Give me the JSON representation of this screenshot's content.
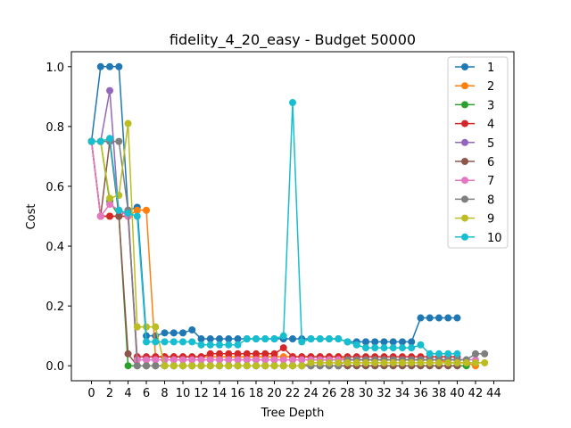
{
  "chart_data": {
    "type": "line",
    "title": "fidelity_4_20_easy - Budget  50000",
    "xlabel": "Tree Depth",
    "ylabel": "Cost",
    "xlim": [
      -2.2,
      46.2
    ],
    "ylim": [
      -0.05,
      1.05
    ],
    "xticks": [
      0,
      2,
      4,
      6,
      8,
      10,
      12,
      14,
      16,
      18,
      20,
      22,
      24,
      26,
      28,
      30,
      32,
      34,
      36,
      38,
      40,
      42,
      44
    ],
    "yticks": [
      0.0,
      0.2,
      0.4,
      0.6,
      0.8,
      1.0
    ],
    "ytick_labels": [
      "0.0",
      "0.2",
      "0.4",
      "0.6",
      "0.8",
      "1.0"
    ],
    "grid": false,
    "legend_position": "top-right",
    "series": [
      {
        "name": "1",
        "color": "#1f77b4",
        "x": [
          0,
          1,
          2,
          3,
          4,
          5,
          6,
          7,
          8,
          9,
          10,
          11,
          12,
          13,
          14,
          15,
          16,
          17,
          18,
          19,
          20,
          21,
          22,
          23,
          24,
          25,
          26,
          27,
          28,
          29,
          30,
          31,
          32,
          33,
          34,
          35,
          36,
          37,
          38,
          39,
          40
        ],
        "y": [
          0.75,
          1.0,
          1.0,
          1.0,
          0.52,
          0.53,
          0.1,
          0.1,
          0.11,
          0.11,
          0.11,
          0.12,
          0.09,
          0.09,
          0.09,
          0.09,
          0.09,
          0.09,
          0.09,
          0.09,
          0.09,
          0.09,
          0.09,
          0.09,
          0.09,
          0.09,
          0.09,
          0.09,
          0.08,
          0.08,
          0.08,
          0.08,
          0.08,
          0.08,
          0.08,
          0.08,
          0.16,
          0.16,
          0.16,
          0.16,
          0.16
        ]
      },
      {
        "name": "2",
        "color": "#ff7f0e",
        "x": [
          0,
          1,
          2,
          3,
          4,
          5,
          6,
          7,
          8,
          9,
          10,
          11,
          12,
          13,
          14,
          15,
          16,
          17,
          18,
          19,
          20,
          21,
          22,
          23,
          24,
          25,
          26,
          27,
          28,
          29,
          30,
          31,
          32,
          33,
          34,
          35,
          36,
          37,
          38,
          39,
          40,
          41,
          42
        ],
        "y": [
          0.75,
          0.5,
          0.5,
          0.5,
          0.5,
          0.52,
          0.52,
          0.03,
          0.03,
          0.03,
          0.03,
          0.03,
          0.03,
          0.03,
          0.03,
          0.03,
          0.03,
          0.03,
          0.03,
          0.03,
          0.03,
          0.03,
          0.03,
          0.03,
          0.03,
          0.03,
          0.03,
          0.03,
          0.02,
          0.02,
          0.02,
          0.02,
          0.02,
          0.02,
          0.02,
          0.02,
          0.02,
          0.02,
          0.02,
          0.01,
          0.01,
          0.01,
          0.0
        ]
      },
      {
        "name": "3",
        "color": "#2ca02c",
        "x": [
          0,
          1,
          2,
          3,
          4,
          5,
          6,
          7,
          8,
          9,
          10,
          11,
          12,
          13,
          14,
          15,
          16,
          17,
          18,
          19,
          20,
          21,
          22,
          23,
          24,
          25,
          26,
          27,
          28,
          29,
          30,
          31,
          32,
          33,
          34,
          35,
          36,
          37,
          38,
          39,
          40,
          41
        ],
        "y": [
          0.75,
          0.75,
          0.55,
          0.5,
          0.0,
          0.0,
          0.0,
          0.0,
          0.0,
          0.0,
          0.0,
          0.0,
          0.0,
          0.0,
          0.0,
          0.0,
          0.0,
          0.0,
          0.0,
          0.0,
          0.0,
          0.0,
          0.0,
          0.0,
          0.0,
          0.0,
          0.0,
          0.0,
          0.0,
          0.0,
          0.0,
          0.0,
          0.0,
          0.0,
          0.0,
          0.0,
          0.0,
          0.0,
          0.0,
          0.0,
          0.0,
          0.0
        ]
      },
      {
        "name": "4",
        "color": "#d62728",
        "x": [
          0,
          1,
          2,
          3,
          4,
          5,
          6,
          7,
          8,
          9,
          10,
          11,
          12,
          13,
          14,
          15,
          16,
          17,
          18,
          19,
          20,
          21,
          22,
          23,
          24,
          25,
          26,
          27,
          28,
          29,
          30,
          31,
          32,
          33,
          34,
          35,
          36,
          37,
          38,
          39,
          40
        ],
        "y": [
          0.75,
          0.5,
          0.5,
          0.5,
          0.5,
          0.03,
          0.03,
          0.03,
          0.03,
          0.03,
          0.03,
          0.03,
          0.03,
          0.04,
          0.04,
          0.04,
          0.04,
          0.04,
          0.04,
          0.04,
          0.04,
          0.06,
          0.03,
          0.03,
          0.03,
          0.03,
          0.03,
          0.03,
          0.03,
          0.03,
          0.03,
          0.03,
          0.03,
          0.03,
          0.03,
          0.03,
          0.03,
          0.03,
          0.03,
          0.03,
          0.03
        ]
      },
      {
        "name": "5",
        "color": "#9467bd",
        "x": [
          0,
          1,
          2,
          3,
          4,
          5,
          6,
          7,
          8,
          9,
          10,
          11,
          12,
          13,
          14,
          15,
          16,
          17,
          18,
          19,
          20,
          21,
          22,
          23,
          24,
          25,
          26,
          27,
          28,
          29,
          30,
          31,
          32,
          33,
          34,
          35,
          36,
          37,
          38,
          39,
          40
        ],
        "y": [
          0.75,
          0.75,
          0.92,
          0.5,
          0.52,
          0.02,
          0.02,
          0.02,
          0.02,
          0.02,
          0.02,
          0.02,
          0.02,
          0.02,
          0.02,
          0.02,
          0.02,
          0.02,
          0.02,
          0.02,
          0.02,
          0.02,
          0.02,
          0.02,
          0.02,
          0.02,
          0.02,
          0.02,
          0.02,
          0.02,
          0.02,
          0.02,
          0.02,
          0.02,
          0.02,
          0.02,
          0.02,
          0.02,
          0.02,
          0.02,
          0.02
        ]
      },
      {
        "name": "6",
        "color": "#8c564b",
        "x": [
          0,
          1,
          2,
          3,
          4,
          5,
          6,
          7,
          8,
          9,
          10,
          11,
          12,
          13,
          14,
          15,
          16,
          17,
          18,
          19,
          20,
          21,
          22,
          23,
          24,
          25,
          26,
          27,
          28,
          29,
          30,
          31,
          32,
          33,
          34,
          35,
          36,
          37,
          38,
          39,
          40
        ],
        "y": [
          0.75,
          0.5,
          0.75,
          0.5,
          0.04,
          0.0,
          0.0,
          0.0,
          0.0,
          0.0,
          0.0,
          0.0,
          0.0,
          0.0,
          0.0,
          0.0,
          0.0,
          0.0,
          0.0,
          0.0,
          0.0,
          0.0,
          0.0,
          0.0,
          0.0,
          0.0,
          0.0,
          0.0,
          0.0,
          0.0,
          0.0,
          0.0,
          0.0,
          0.0,
          0.0,
          0.0,
          0.0,
          0.0,
          0.0,
          0.0,
          0.0
        ]
      },
      {
        "name": "7",
        "color": "#e377c2",
        "x": [
          0,
          1,
          2,
          3,
          4,
          5,
          6,
          7,
          8,
          9,
          10,
          11,
          12,
          13,
          14,
          15,
          16,
          17,
          18,
          19,
          20,
          21,
          22,
          23,
          24,
          25,
          26,
          27,
          28,
          29,
          30,
          31,
          32,
          33,
          34,
          35,
          36,
          37,
          38,
          39,
          40,
          41,
          42
        ],
        "y": [
          0.75,
          0.5,
          0.54,
          0.52,
          0.5,
          0.02,
          0.02,
          0.02,
          0.02,
          0.02,
          0.02,
          0.02,
          0.02,
          0.02,
          0.02,
          0.02,
          0.02,
          0.02,
          0.02,
          0.02,
          0.02,
          0.02,
          0.02,
          0.02,
          0.02,
          0.02,
          0.02,
          0.02,
          0.02,
          0.02,
          0.02,
          0.02,
          0.02,
          0.02,
          0.02,
          0.02,
          0.02,
          0.02,
          0.02,
          0.02,
          0.02,
          0.02,
          0.02
        ]
      },
      {
        "name": "8",
        "color": "#7f7f7f",
        "x": [
          0,
          1,
          2,
          3,
          4,
          5,
          6,
          7,
          8,
          9,
          10,
          11,
          12,
          13,
          14,
          15,
          16,
          17,
          18,
          19,
          20,
          21,
          22,
          23,
          24,
          25,
          26,
          27,
          28,
          29,
          30,
          31,
          32,
          33,
          34,
          35,
          36,
          37,
          38,
          39,
          40,
          41,
          42,
          43
        ],
        "y": [
          0.75,
          0.75,
          0.75,
          0.75,
          0.52,
          0.0,
          0.0,
          0.0,
          0.0,
          0.0,
          0.0,
          0.0,
          0.0,
          0.0,
          0.0,
          0.0,
          0.0,
          0.0,
          0.0,
          0.0,
          0.0,
          0.0,
          0.0,
          0.0,
          0.0,
          0.0,
          0.0,
          0.0,
          0.02,
          0.02,
          0.02,
          0.02,
          0.02,
          0.02,
          0.02,
          0.02,
          0.02,
          0.02,
          0.02,
          0.02,
          0.02,
          0.02,
          0.04,
          0.04
        ]
      },
      {
        "name": "9",
        "color": "#bcbd22",
        "x": [
          0,
          1,
          2,
          3,
          4,
          5,
          6,
          7,
          8,
          9,
          10,
          11,
          12,
          13,
          14,
          15,
          16,
          17,
          18,
          19,
          20,
          21,
          22,
          23,
          24,
          25,
          26,
          27,
          28,
          29,
          30,
          31,
          32,
          33,
          34,
          35,
          36,
          37,
          38,
          39,
          40,
          41,
          42,
          43
        ],
        "y": [
          0.75,
          0.75,
          0.56,
          0.57,
          0.81,
          0.13,
          0.13,
          0.13,
          0.0,
          0.0,
          0.0,
          0.0,
          0.0,
          0.0,
          0.0,
          0.0,
          0.0,
          0.0,
          0.0,
          0.0,
          0.0,
          0.0,
          0.0,
          0.0,
          0.01,
          0.01,
          0.01,
          0.01,
          0.01,
          0.01,
          0.01,
          0.01,
          0.01,
          0.01,
          0.01,
          0.01,
          0.01,
          0.01,
          0.01,
          0.01,
          0.01,
          0.01,
          0.01,
          0.01
        ]
      },
      {
        "name": "10",
        "color": "#17becf",
        "x": [
          0,
          1,
          2,
          3,
          4,
          5,
          6,
          7,
          8,
          9,
          10,
          11,
          12,
          13,
          14,
          15,
          16,
          17,
          18,
          19,
          20,
          21,
          22,
          23,
          24,
          25,
          26,
          27,
          28,
          29,
          30,
          31,
          32,
          33,
          34,
          35,
          36,
          37,
          38,
          39,
          40
        ],
        "y": [
          0.75,
          0.75,
          0.76,
          0.52,
          0.51,
          0.5,
          0.08,
          0.08,
          0.08,
          0.08,
          0.08,
          0.08,
          0.07,
          0.07,
          0.07,
          0.07,
          0.07,
          0.09,
          0.09,
          0.09,
          0.09,
          0.1,
          0.88,
          0.08,
          0.09,
          0.09,
          0.09,
          0.09,
          0.08,
          0.07,
          0.06,
          0.06,
          0.06,
          0.06,
          0.06,
          0.06,
          0.07,
          0.04,
          0.04,
          0.04,
          0.04
        ]
      }
    ]
  }
}
